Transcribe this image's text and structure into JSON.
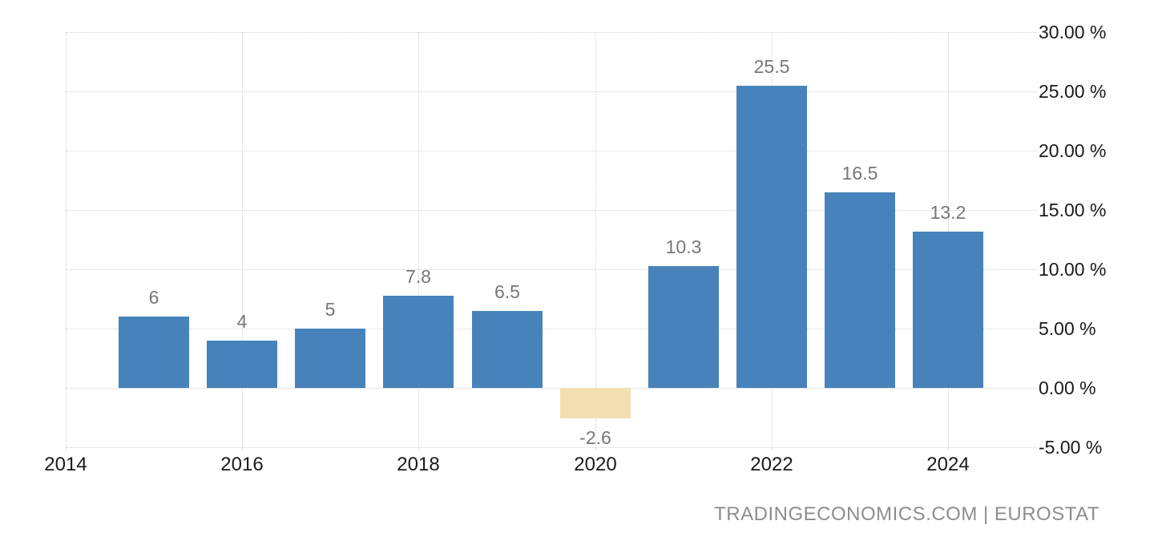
{
  "chart_data": {
    "type": "bar",
    "title": "",
    "xlabel": "",
    "ylabel": "",
    "ylim": [
      -5,
      30
    ],
    "grid": "dotted",
    "legend": "none",
    "y_ticks": [
      {
        "value": 30,
        "label": "30.00 %"
      },
      {
        "value": 25,
        "label": "25.00 %"
      },
      {
        "value": 20,
        "label": "20.00 %"
      },
      {
        "value": 15,
        "label": "15.00 %"
      },
      {
        "value": 10,
        "label": "10.00 %"
      },
      {
        "value": 5,
        "label": "5.00 %"
      },
      {
        "value": 0,
        "label": "0.00 %"
      },
      {
        "value": -5,
        "label": "-5.00 %"
      }
    ],
    "x_ticks": [
      {
        "value": 2014,
        "label": "2014"
      },
      {
        "value": 2016,
        "label": "2016"
      },
      {
        "value": 2018,
        "label": "2018"
      },
      {
        "value": 2020,
        "label": "2020"
      },
      {
        "value": 2022,
        "label": "2022"
      },
      {
        "value": 2024,
        "label": "2024"
      }
    ],
    "bars": [
      {
        "year": 2015,
        "value": 6,
        "label": "6"
      },
      {
        "year": 2016,
        "value": 4,
        "label": "4"
      },
      {
        "year": 2017,
        "value": 5,
        "label": "5"
      },
      {
        "year": 2018,
        "value": 7.8,
        "label": "7.8"
      },
      {
        "year": 2019,
        "value": 6.5,
        "label": "6.5"
      },
      {
        "year": 2020,
        "value": -2.6,
        "label": "-2.6"
      },
      {
        "year": 2021,
        "value": 10.3,
        "label": "10.3"
      },
      {
        "year": 2022,
        "value": 25.5,
        "label": "25.5"
      },
      {
        "year": 2023,
        "value": 16.5,
        "label": "16.5"
      },
      {
        "year": 2024,
        "value": 13.2,
        "label": "13.2"
      }
    ],
    "colors": {
      "positive_bar": "#4783ba",
      "negative_bar": "#f3deb2",
      "gridline": "#d0d0d0",
      "tick_label": "#1a1a1a",
      "value_label": "#777777",
      "footer": "#8d8d8d"
    }
  },
  "footer": {
    "source_text": "TRADINGECONOMICS.COM | EUROSTAT"
  }
}
